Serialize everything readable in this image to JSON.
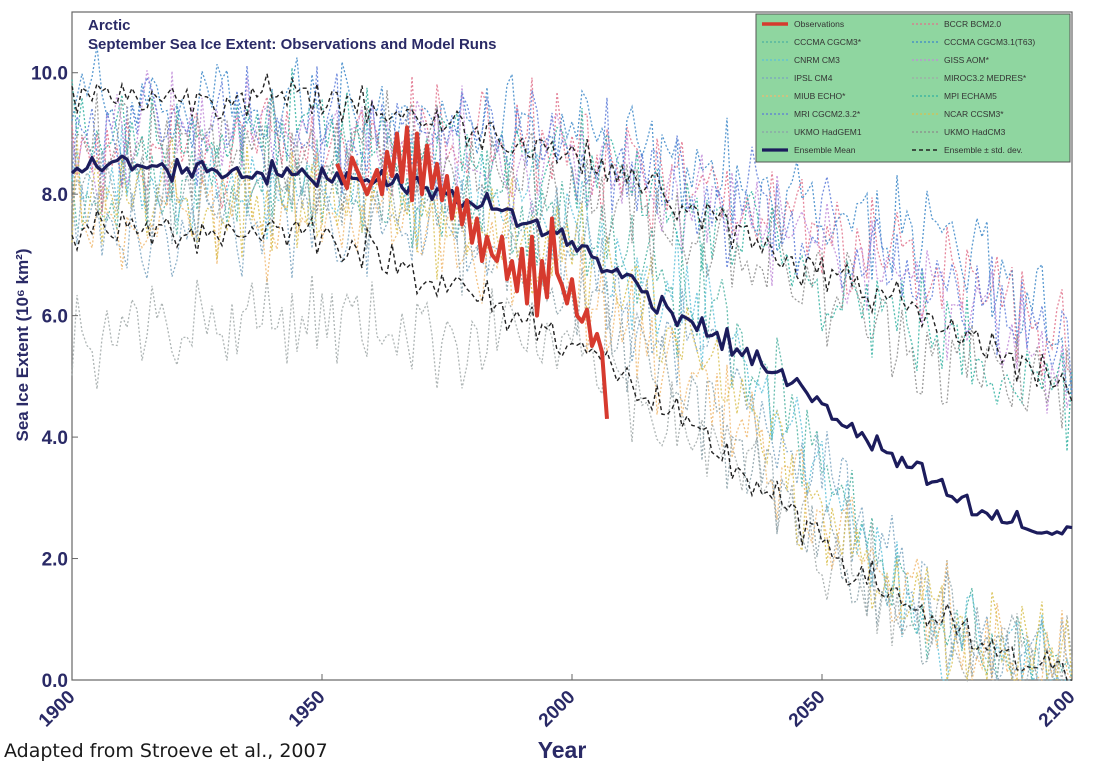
{
  "chart_data": {
    "type": "line",
    "title": "Arctic",
    "subtitle": "September Sea Ice Extent: Observations and Model Runs",
    "xlabel": "Year",
    "ylabel": "Sea Ice Extent (10⁶ km²)",
    "xlim": [
      1900,
      2100
    ],
    "ylim": [
      0,
      11
    ],
    "x_ticks": [
      "1900",
      "1950",
      "2000",
      "2050",
      "2100"
    ],
    "y_ticks": [
      "0.0",
      "2.0",
      "4.0",
      "6.0",
      "8.0",
      "10.0"
    ],
    "grid": false,
    "legend_position": "top-right",
    "legend_background": "#8fd6a0",
    "source_note": "Adapted from Stroeve et al., 2007",
    "series": [
      {
        "name": "Observations",
        "color": "#d63a2e",
        "width": 4,
        "style": "solid",
        "x": [
          1953,
          1955,
          1956,
          1958,
          1959,
          1961,
          1962,
          1963,
          1964,
          1965,
          1966,
          1967,
          1968,
          1969,
          1970,
          1971,
          1972,
          1973,
          1974,
          1975,
          1976,
          1977,
          1978,
          1979,
          1980,
          1981,
          1982,
          1983,
          1984,
          1985,
          1986,
          1987,
          1988,
          1989,
          1990,
          1991,
          1992,
          1993,
          1994,
          1995,
          1996,
          1997,
          1998,
          1999,
          2000,
          2001,
          2002,
          2003,
          2004,
          2005,
          2006,
          2007
        ],
        "y": [
          8.5,
          8.1,
          8.6,
          8.2,
          8.0,
          8.4,
          8.0,
          8.7,
          8.3,
          9.0,
          8.2,
          9.1,
          7.9,
          9.0,
          8.0,
          8.8,
          8.1,
          8.5,
          7.9,
          8.3,
          7.6,
          8.1,
          7.5,
          7.9,
          7.2,
          7.6,
          6.9,
          7.3,
          7.0,
          6.9,
          7.3,
          6.6,
          6.9,
          6.4,
          7.1,
          6.2,
          7.3,
          6.0,
          6.9,
          6.3,
          7.6,
          6.7,
          6.5,
          6.2,
          6.6,
          6.0,
          5.9,
          6.1,
          5.5,
          5.7,
          5.4,
          4.3
        ]
      },
      {
        "name": "BCCR BCM2.0",
        "color": "#e0708a",
        "width": 1.3,
        "style": "dotted",
        "anchors": [
          [
            1900,
            8.6
          ],
          [
            1950,
            8.8
          ],
          [
            1990,
            9.0
          ],
          [
            2010,
            8.2
          ],
          [
            2050,
            7.6
          ],
          [
            2080,
            6.6
          ],
          [
            2100,
            5.6
          ]
        ]
      },
      {
        "name": "CCCMA CGCM3*",
        "color": "#4bb0a0",
        "width": 1.3,
        "style": "dotted",
        "anchors": [
          [
            1900,
            8.0
          ],
          [
            1960,
            8.2
          ],
          [
            2000,
            7.4
          ],
          [
            2030,
            5.9
          ],
          [
            2050,
            3.5
          ],
          [
            2070,
            1.0
          ],
          [
            2100,
            0.1
          ]
        ]
      },
      {
        "name": "CCCMA CGCM3.1(T63)",
        "color": "#3a86c8",
        "width": 1.3,
        "style": "dotted",
        "anchors": [
          [
            1900,
            9.6
          ],
          [
            1950,
            9.4
          ],
          [
            2000,
            8.9
          ],
          [
            2040,
            8.0
          ],
          [
            2080,
            7.1
          ],
          [
            2100,
            5.6
          ]
        ]
      },
      {
        "name": "CNRM CM3",
        "color": "#5cc0d8",
        "width": 1.3,
        "style": "dotted",
        "anchors": [
          [
            1900,
            8.3
          ],
          [
            1960,
            8.2
          ],
          [
            2000,
            7.5
          ],
          [
            2030,
            5.9
          ],
          [
            2050,
            3.2
          ],
          [
            2070,
            0.8
          ],
          [
            2100,
            0.0
          ]
        ]
      },
      {
        "name": "GISS AOM*",
        "color": "#c08ad8",
        "width": 1.3,
        "style": "dotted",
        "anchors": [
          [
            1900,
            9.0
          ],
          [
            1950,
            9.0
          ],
          [
            2000,
            8.5
          ],
          [
            2040,
            7.4
          ],
          [
            2080,
            6.0
          ],
          [
            2100,
            4.9
          ]
        ]
      },
      {
        "name": "IPSL CM4",
        "color": "#7aa3c0",
        "width": 1.3,
        "style": "dotted",
        "anchors": [
          [
            1900,
            7.6
          ],
          [
            1960,
            7.7
          ],
          [
            2000,
            7.0
          ],
          [
            2030,
            5.3
          ],
          [
            2060,
            2.4
          ],
          [
            2080,
            0.7
          ],
          [
            2100,
            0.2
          ]
        ]
      },
      {
        "name": "MIROC3.2 MEDRES*",
        "color": "#a0a8a8",
        "width": 1.3,
        "style": "dotted",
        "anchors": [
          [
            1900,
            5.8
          ],
          [
            1950,
            6.0
          ],
          [
            1990,
            5.7
          ],
          [
            2010,
            5.0
          ],
          [
            2040,
            3.0
          ],
          [
            2070,
            1.0
          ],
          [
            2100,
            0.1
          ]
        ]
      },
      {
        "name": "MIUB ECHO*",
        "color": "#f0b870",
        "width": 1.3,
        "style": "dotted",
        "anchors": [
          [
            1900,
            7.7
          ],
          [
            1960,
            7.6
          ],
          [
            2000,
            6.5
          ],
          [
            2030,
            4.6
          ],
          [
            2050,
            2.4
          ],
          [
            2080,
            0.6
          ],
          [
            2100,
            0.3
          ]
        ]
      },
      {
        "name": "MPI ECHAM5",
        "color": "#30b0a0",
        "width": 1.3,
        "style": "dotted",
        "anchors": [
          [
            1900,
            8.9
          ],
          [
            1950,
            9.0
          ],
          [
            2000,
            8.5
          ],
          [
            2040,
            7.0
          ],
          [
            2080,
            5.4
          ],
          [
            2100,
            4.8
          ]
        ]
      },
      {
        "name": "MRI CGCM2.3.2*",
        "color": "#5a7ad8",
        "width": 1.3,
        "style": "dotted",
        "anchors": [
          [
            1900,
            9.2
          ],
          [
            1960,
            9.1
          ],
          [
            2000,
            8.7
          ],
          [
            2040,
            7.6
          ],
          [
            2080,
            6.3
          ],
          [
            2100,
            5.3
          ]
        ]
      },
      {
        "name": "NCAR CCSM3*",
        "color": "#d8c050",
        "width": 1.3,
        "style": "dotted",
        "anchors": [
          [
            1900,
            7.9
          ],
          [
            1960,
            7.9
          ],
          [
            2000,
            7.0
          ],
          [
            2030,
            5.2
          ],
          [
            2050,
            2.6
          ],
          [
            2080,
            0.5
          ],
          [
            2100,
            0.2
          ]
        ]
      },
      {
        "name": "UKMO HadGEM1",
        "color": "#8aa0a8",
        "width": 1.3,
        "style": "dotted",
        "anchors": [
          [
            1900,
            8.1
          ],
          [
            1960,
            8.1
          ],
          [
            2000,
            6.4
          ],
          [
            2030,
            4.3
          ],
          [
            2060,
            1.5
          ],
          [
            2090,
            0.3
          ],
          [
            2100,
            0.0
          ]
        ]
      },
      {
        "name": "UKMO HadCM3",
        "color": "#8a8a8a",
        "width": 1.3,
        "style": "dotted",
        "anchors": [
          [
            1900,
            8.7
          ],
          [
            1960,
            8.8
          ],
          [
            2000,
            8.1
          ],
          [
            2040,
            6.9
          ],
          [
            2080,
            5.1
          ],
          [
            2100,
            4.7
          ]
        ]
      },
      {
        "name": "Ensemble Mean",
        "color": "#1c1c5c",
        "width": 3.2,
        "style": "solid",
        "anchors": [
          [
            1900,
            8.5
          ],
          [
            1930,
            8.4
          ],
          [
            1950,
            8.3
          ],
          [
            1960,
            8.3
          ],
          [
            1980,
            7.9
          ],
          [
            2000,
            7.2
          ],
          [
            2020,
            6.1
          ],
          [
            2040,
            5.1
          ],
          [
            2060,
            3.9
          ],
          [
            2080,
            2.8
          ],
          [
            2095,
            2.4
          ],
          [
            2100,
            2.5
          ]
        ]
      },
      {
        "name": "Ensemble ± std. dev.",
        "color": "#222222",
        "width": 1.4,
        "style": "dashed",
        "anchors_upper": [
          [
            1900,
            9.6
          ],
          [
            1950,
            9.6
          ],
          [
            2000,
            8.7
          ],
          [
            2040,
            7.1
          ],
          [
            2080,
            5.6
          ],
          [
            2100,
            4.8
          ]
        ],
        "anchors_lower": [
          [
            1900,
            7.4
          ],
          [
            1950,
            7.4
          ],
          [
            2000,
            5.6
          ],
          [
            2030,
            3.7
          ],
          [
            2060,
            1.6
          ],
          [
            2085,
            0.4
          ],
          [
            2100,
            0.1
          ]
        ]
      }
    ]
  }
}
